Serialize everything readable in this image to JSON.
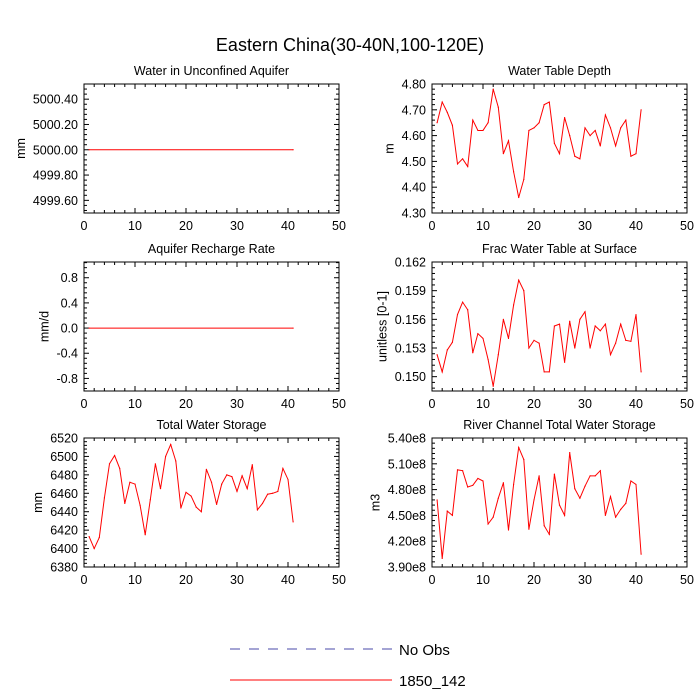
{
  "title": "Eastern China(30-40N,100-120E)",
  "legend": [
    {
      "label": "No Obs",
      "color": "#4a4aa8",
      "style": "dashed"
    },
    {
      "label": "1850_142",
      "color": "#ff0000",
      "style": "solid"
    }
  ],
  "chart_data": [
    {
      "type": "line",
      "title": "Water in Unconfined Aquifer",
      "ylabel": "mm",
      "xlim": [
        0,
        50
      ],
      "ylim": [
        4999.5,
        5000.52
      ],
      "xticks": [
        "0",
        "10",
        "20",
        "30",
        "40",
        "50"
      ],
      "yticks": [
        "4999.60",
        "4999.80",
        "5000.00",
        "5000.20",
        "5000.40"
      ],
      "series": [
        {
          "color": "#ff0000",
          "x": [
            1,
            41
          ],
          "values": [
            5000.0,
            5000.0
          ]
        }
      ]
    },
    {
      "type": "line",
      "title": "Water Table Depth",
      "ylabel": "m",
      "xlim": [
        0,
        50
      ],
      "ylim": [
        4.3,
        4.8
      ],
      "xticks": [
        "0",
        "10",
        "20",
        "30",
        "40",
        "50"
      ],
      "yticks": [
        "4.30",
        "4.40",
        "4.50",
        "4.60",
        "4.70",
        "4.80"
      ],
      "series": [
        {
          "color": "#ff0000",
          "x": [
            1,
            2,
            3,
            4,
            5,
            6,
            7,
            8,
            9,
            10,
            11,
            12,
            13,
            14,
            15,
            16,
            17,
            18,
            19,
            20,
            21,
            22,
            23,
            24,
            25,
            26,
            27,
            28,
            29,
            30,
            31,
            32,
            33,
            34,
            35,
            36,
            37,
            38,
            39,
            40,
            41
          ],
          "values": [
            4.65,
            4.73,
            4.69,
            4.64,
            4.49,
            4.51,
            4.48,
            4.66,
            4.62,
            4.62,
            4.65,
            4.78,
            4.71,
            4.53,
            4.58,
            4.46,
            4.36,
            4.43,
            4.62,
            4.63,
            4.65,
            4.72,
            4.73,
            4.57,
            4.53,
            4.67,
            4.6,
            4.52,
            4.51,
            4.63,
            4.6,
            4.62,
            4.56,
            4.68,
            4.63,
            4.56,
            4.63,
            4.66,
            4.52,
            4.53,
            4.7
          ]
        }
      ]
    },
    {
      "type": "line",
      "title": "Aquifer Recharge Rate",
      "ylabel": "mm/d",
      "xlim": [
        0,
        50
      ],
      "ylim": [
        -1.0,
        1.05
      ],
      "xticks": [
        "0",
        "10",
        "20",
        "30",
        "40",
        "50"
      ],
      "yticks": [
        "-0.8",
        "-0.4",
        "0.0",
        "0.4",
        "0.8"
      ],
      "series": [
        {
          "color": "#ff0000",
          "x": [
            1,
            41
          ],
          "values": [
            0.0,
            0.0
          ]
        }
      ]
    },
    {
      "type": "line",
      "title": "Frac Water Table at Surface",
      "ylabel": "unitless [0-1]",
      "xlim": [
        0,
        50
      ],
      "ylim": [
        0.1485,
        0.162
      ],
      "xticks": [
        "0",
        "10",
        "20",
        "30",
        "40",
        "50"
      ],
      "yticks": [
        "0.150",
        "0.153",
        "0.156",
        "0.159",
        "0.162"
      ],
      "series": [
        {
          "color": "#ff0000",
          "x": [
            1,
            2,
            3,
            4,
            5,
            6,
            7,
            8,
            9,
            10,
            11,
            12,
            13,
            14,
            15,
            16,
            17,
            18,
            19,
            20,
            21,
            22,
            23,
            24,
            25,
            26,
            27,
            28,
            29,
            30,
            31,
            32,
            33,
            34,
            35,
            36,
            37,
            38,
            39,
            40,
            41
          ],
          "values": [
            0.1523,
            0.1505,
            0.1528,
            0.1536,
            0.1565,
            0.1578,
            0.157,
            0.1525,
            0.1545,
            0.154,
            0.1518,
            0.149,
            0.1523,
            0.156,
            0.154,
            0.1575,
            0.1601,
            0.159,
            0.153,
            0.1538,
            0.1535,
            0.1505,
            0.1505,
            0.1553,
            0.1555,
            0.1515,
            0.1558,
            0.153,
            0.156,
            0.1568,
            0.153,
            0.1553,
            0.1548,
            0.1555,
            0.1523,
            0.1535,
            0.1555,
            0.1538,
            0.1537,
            0.1565,
            0.1505
          ]
        }
      ]
    },
    {
      "type": "line",
      "title": "Total Water Storage",
      "ylabel": "mm",
      "xlim": [
        0,
        50
      ],
      "ylim": [
        6380,
        6520
      ],
      "xticks": [
        "0",
        "10",
        "20",
        "30",
        "40",
        "50"
      ],
      "yticks": [
        "6380",
        "6400",
        "6420",
        "6440",
        "6460",
        "6480",
        "6500",
        "6520"
      ],
      "series": [
        {
          "color": "#ff0000",
          "x": [
            1,
            2,
            3,
            4,
            5,
            6,
            7,
            8,
            9,
            10,
            11,
            12,
            13,
            14,
            15,
            16,
            17,
            18,
            19,
            20,
            21,
            22,
            23,
            24,
            25,
            26,
            27,
            28,
            29,
            30,
            31,
            32,
            33,
            34,
            35,
            36,
            37,
            38,
            39,
            40,
            41
          ],
          "values": [
            6413,
            6400,
            6412,
            6455,
            6492,
            6501,
            6487,
            6449,
            6472,
            6470,
            6447,
            6415,
            6453,
            6492,
            6465,
            6500,
            6513,
            6495,
            6444,
            6461,
            6457,
            6445,
            6440,
            6486,
            6472,
            6448,
            6470,
            6480,
            6478,
            6462,
            6479,
            6465,
            6491,
            6442,
            6449,
            6459,
            6460,
            6462,
            6487,
            6475,
            6429
          ]
        }
      ]
    },
    {
      "type": "line",
      "title": "River Channel Total Water Storage",
      "ylabel": "m3",
      "xlim": [
        0,
        50
      ],
      "ylim": [
        390000000.0,
        540000000.0
      ],
      "xticks": [
        "0",
        "10",
        "20",
        "30",
        "40",
        "50"
      ],
      "yticks": [
        "3.90e8",
        "4.20e8",
        "4.50e8",
        "4.80e8",
        "5.10e8",
        "5.40e8"
      ],
      "series": [
        {
          "color": "#ff0000",
          "x": [
            1,
            2,
            3,
            4,
            5,
            6,
            7,
            8,
            9,
            10,
            11,
            12,
            13,
            14,
            15,
            16,
            17,
            18,
            19,
            20,
            21,
            22,
            23,
            24,
            25,
            26,
            27,
            28,
            29,
            30,
            31,
            32,
            33,
            34,
            35,
            36,
            37,
            38,
            39,
            40,
            41
          ],
          "values": [
            468000000.0,
            400000000.0,
            455000000.0,
            450000000.0,
            503000000.0,
            502000000.0,
            483000000.0,
            485000000.0,
            493000000.0,
            490000000.0,
            440000000.0,
            448000000.0,
            470000000.0,
            488000000.0,
            433000000.0,
            486000000.0,
            529000000.0,
            515000000.0,
            434000000.0,
            468000000.0,
            496000000.0,
            438000000.0,
            428000000.0,
            498000000.0,
            462000000.0,
            450000000.0,
            523000000.0,
            481000000.0,
            470000000.0,
            484000000.0,
            496000000.0,
            496000000.0,
            502000000.0,
            450000000.0,
            472000000.0,
            448000000.0,
            457000000.0,
            464000000.0,
            490000000.0,
            486000000.0,
            405000000.0
          ]
        }
      ]
    }
  ]
}
